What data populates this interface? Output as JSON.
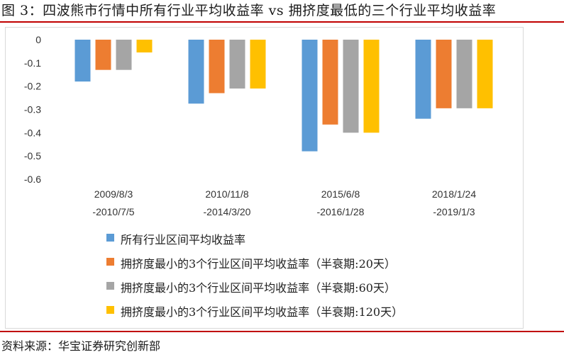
{
  "header": {
    "title": "图 3：四波熊市行情中所有行业平均收益率 vs 拥挤度最低的三个行业平均收益率"
  },
  "footer": {
    "source": "资料来源：华宝证券研究创新部"
  },
  "chart_data": {
    "type": "bar",
    "categories": [
      [
        "2009/8/3",
        "-2010/7/5"
      ],
      [
        "2010/11/8",
        "-2014/3/20"
      ],
      [
        "2015/6/8",
        "-2016/1/28"
      ],
      [
        "2018/1/24",
        "-2019/1/3"
      ]
    ],
    "series": [
      {
        "name": "所有行业区间平均收益率",
        "color": "#5b9bd5",
        "values": [
          -0.18,
          -0.275,
          -0.48,
          -0.34
        ]
      },
      {
        "name": "拥挤度最小的3个行业区间平均收益率（半衰期:20天）",
        "color": "#ed7d31",
        "values": [
          -0.13,
          -0.23,
          -0.365,
          -0.295
        ]
      },
      {
        "name": "拥挤度最小的3个行业区间平均收益率（半衰期:60天）",
        "color": "#a5a5a5",
        "values": [
          -0.13,
          -0.21,
          -0.4,
          -0.295
        ]
      },
      {
        "name": "拥挤度最小的3个行业区间平均收益率（半衰期:120天）",
        "color": "#ffc000",
        "values": [
          -0.055,
          -0.21,
          -0.4,
          -0.295
        ]
      }
    ],
    "yticks": [
      "0",
      "-0.1",
      "-0.2",
      "-0.3",
      "-0.4",
      "-0.5",
      "-0.6"
    ],
    "ylim": [
      -0.6,
      0
    ],
    "grid": false,
    "legend_position": "bottom"
  }
}
